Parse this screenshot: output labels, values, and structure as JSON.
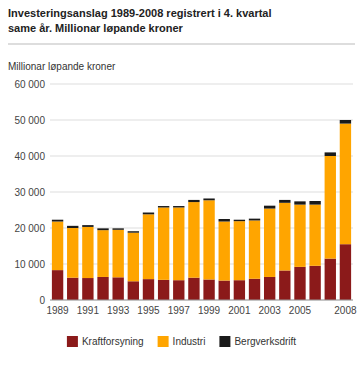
{
  "chart_data": {
    "type": "bar",
    "stacked": true,
    "title": "Investeringsanslag 1989-2008 registrert i 4. kvartal\nsame år. Millionar løpande kroner",
    "ylabel": "Millionar løpande kroner",
    "categories": [
      "1989",
      null,
      "1991",
      null,
      "1993",
      null,
      "1995",
      null,
      "1997",
      null,
      "1999",
      null,
      "2001",
      null,
      "2003",
      null,
      "2005",
      null,
      null,
      "2008"
    ],
    "series": [
      {
        "name": "Kraftforsyning",
        "color": "#8B1A1A",
        "values": [
          8300,
          6200,
          6100,
          6400,
          6300,
          5200,
          5800,
          5600,
          5500,
          6200,
          5700,
          5400,
          5500,
          5900,
          6400,
          8200,
          9200,
          9500,
          11500,
          15500
        ]
      },
      {
        "name": "Industri",
        "color": "#FFA500",
        "values": [
          13500,
          13800,
          14200,
          13000,
          13200,
          13500,
          18000,
          20100,
          20200,
          21000,
          22000,
          16400,
          16400,
          16200,
          19000,
          18800,
          17300,
          17000,
          28500,
          33500
        ]
      },
      {
        "name": "Bergverksdrift",
        "color": "#1a1a1a",
        "values": [
          500,
          600,
          500,
          500,
          400,
          400,
          500,
          400,
          400,
          600,
          500,
          700,
          400,
          500,
          800,
          800,
          900,
          1000,
          1000,
          1000
        ]
      }
    ],
    "ylim": [
      0,
      60000
    ],
    "yticks": [
      0,
      {
        "value": 10000,
        "label": "10 000"
      },
      {
        "value": 20000,
        "label": "20 000"
      },
      {
        "value": 30000,
        "label": "30 000"
      },
      {
        "value": 40000,
        "label": "40 000"
      },
      {
        "value": 50000,
        "label": "50 000"
      },
      {
        "value": 60000,
        "label": "60 000"
      }
    ],
    "grid": true,
    "legend": "bottom"
  }
}
